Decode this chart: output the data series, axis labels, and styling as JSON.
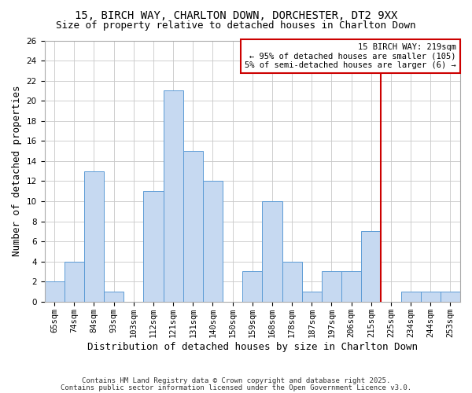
{
  "title": "15, BIRCH WAY, CHARLTON DOWN, DORCHESTER, DT2 9XX",
  "subtitle": "Size of property relative to detached houses in Charlton Down",
  "xlabel": "Distribution of detached houses by size in Charlton Down",
  "ylabel": "Number of detached properties",
  "bar_labels": [
    "65sqm",
    "74sqm",
    "84sqm",
    "93sqm",
    "103sqm",
    "112sqm",
    "121sqm",
    "131sqm",
    "140sqm",
    "150sqm",
    "159sqm",
    "168sqm",
    "178sqm",
    "187sqm",
    "197sqm",
    "206sqm",
    "215sqm",
    "225sqm",
    "234sqm",
    "244sqm",
    "253sqm"
  ],
  "bar_values": [
    2,
    4,
    13,
    1,
    0,
    11,
    21,
    15,
    12,
    0,
    3,
    10,
    4,
    1,
    3,
    3,
    7,
    0,
    1,
    1,
    1
  ],
  "bar_color": "#c6d9f1",
  "bar_edge_color": "#5b9bd5",
  "grid_color": "#c8c8c8",
  "vline_x": 16.5,
  "vline_color": "#cc0000",
  "ylim": [
    0,
    26
  ],
  "yticks": [
    0,
    2,
    4,
    6,
    8,
    10,
    12,
    14,
    16,
    18,
    20,
    22,
    24,
    26
  ],
  "annotation_title": "15 BIRCH WAY: 219sqm",
  "annotation_line1": "← 95% of detached houses are smaller (105)",
  "annotation_line2": "5% of semi-detached houses are larger (6) →",
  "annotation_box_color": "#cc0000",
  "footer1": "Contains HM Land Registry data © Crown copyright and database right 2025.",
  "footer2": "Contains public sector information licensed under the Open Government Licence v3.0.",
  "title_fontsize": 10,
  "subtitle_fontsize": 9,
  "axis_label_fontsize": 9,
  "tick_fontsize": 7.5,
  "annotation_fontsize": 7.5,
  "footer_fontsize": 6.5
}
